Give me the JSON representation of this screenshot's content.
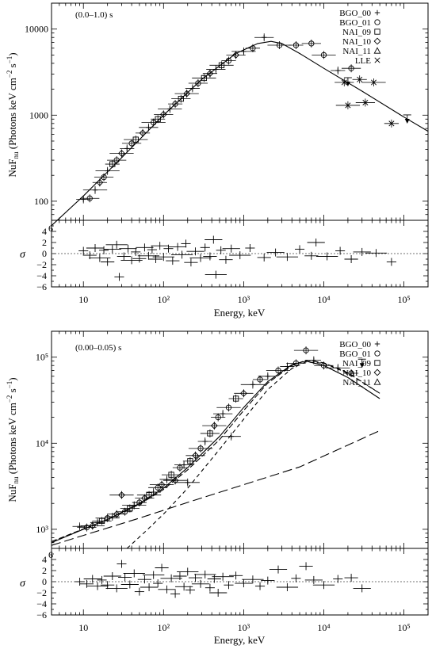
{
  "chart_data": [
    {
      "type": "scatter",
      "panel_label": "(0.0–1.0) s",
      "xlabel": "Energy, keV",
      "ylabel_main": "NuF",
      "ylabel_sub": "nu",
      "ylabel_units": " (Photons keV cm",
      "ylabel_exp1": "−2",
      "ylabel_mid": " s",
      "ylabel_exp2": "−1",
      "ylabel_close": ")",
      "residual_label": "σ",
      "xscale": "log",
      "yscale": "log",
      "xlim": [
        4,
        200000
      ],
      "ylim": [
        60,
        20000
      ],
      "xticks": [
        {
          "v": 10,
          "label": "10"
        },
        {
          "v": 100,
          "label": "10²"
        },
        {
          "v": 1000,
          "label": "10³"
        },
        {
          "v": 10000,
          "label": "10⁴"
        },
        {
          "v": 100000,
          "label": "10⁵"
        }
      ],
      "yticks": [
        {
          "v": 100,
          "label": "100"
        },
        {
          "v": 1000,
          "label": "1000"
        },
        {
          "v": 10000,
          "label": "10000"
        }
      ],
      "y_bottom_label": "6",
      "residual_ylim": [
        -6,
        6
      ],
      "residual_ticks": [
        "4",
        "2",
        "0",
        "−2",
        "−4",
        "−6"
      ],
      "legend": {
        "position": "top-right",
        "entries": [
          {
            "name": "BGO_00",
            "marker": "+"
          },
          {
            "name": "BGO_01",
            "marker": "○"
          },
          {
            "name": "NAI_09",
            "marker": "□"
          },
          {
            "name": "NAI_10",
            "marker": "◇"
          },
          {
            "name": "NAI_11",
            "marker": "△"
          },
          {
            "name": "LLE",
            "marker": "×"
          }
        ]
      },
      "model_curves": [
        {
          "style": "solid",
          "x": [
            4,
            10,
            30,
            100,
            300,
            800,
            1500,
            2200,
            3000,
            5000,
            10000,
            30000,
            100000,
            200000
          ],
          "y": [
            52,
            115,
            320,
            1000,
            2600,
            5200,
            6800,
            7200,
            6800,
            5200,
            3500,
            1900,
            950,
            650
          ]
        }
      ],
      "points": [
        {
          "x": 10,
          "y": 105,
          "d": 0
        },
        {
          "x": 12,
          "y": 108,
          "d": 1
        },
        {
          "x": 14,
          "y": 135,
          "d": 0
        },
        {
          "x": 16,
          "y": 165,
          "d": 3
        },
        {
          "x": 18,
          "y": 190,
          "d": 1
        },
        {
          "x": 20,
          "y": 225,
          "d": 0
        },
        {
          "x": 23,
          "y": 270,
          "d": 2
        },
        {
          "x": 26,
          "y": 300,
          "d": 1
        },
        {
          "x": 30,
          "y": 360,
          "d": 3
        },
        {
          "x": 35,
          "y": 410,
          "d": 0
        },
        {
          "x": 40,
          "y": 470,
          "d": 1
        },
        {
          "x": 45,
          "y": 520,
          "d": 2
        },
        {
          "x": 55,
          "y": 620,
          "d": 3
        },
        {
          "x": 65,
          "y": 720,
          "d": 0
        },
        {
          "x": 75,
          "y": 820,
          "d": 1
        },
        {
          "x": 85,
          "y": 900,
          "d": 2
        },
        {
          "x": 100,
          "y": 1020,
          "d": 3
        },
        {
          "x": 120,
          "y": 1180,
          "d": 0
        },
        {
          "x": 140,
          "y": 1350,
          "d": 1
        },
        {
          "x": 165,
          "y": 1550,
          "d": 2
        },
        {
          "x": 195,
          "y": 1780,
          "d": 3
        },
        {
          "x": 230,
          "y": 2050,
          "d": 0
        },
        {
          "x": 270,
          "y": 2350,
          "d": 1
        },
        {
          "x": 320,
          "y": 2700,
          "d": 2
        },
        {
          "x": 380,
          "y": 3050,
          "d": 3
        },
        {
          "x": 450,
          "y": 3400,
          "d": 0
        },
        {
          "x": 530,
          "y": 3800,
          "d": 2
        },
        {
          "x": 650,
          "y": 4300,
          "d": 1
        },
        {
          "x": 800,
          "y": 5000,
          "d": 3
        },
        {
          "x": 1000,
          "y": 5500,
          "d": 0
        },
        {
          "x": 1300,
          "y": 6000,
          "d": 1
        },
        {
          "x": 1800,
          "y": 8000,
          "d": 0
        },
        {
          "x": 2800,
          "y": 6500,
          "d": 1
        },
        {
          "x": 4500,
          "y": 6500,
          "d": 1
        },
        {
          "x": 7000,
          "y": 6800,
          "d": 1
        },
        {
          "x": 10000,
          "y": 5000,
          "d": 1
        },
        {
          "x": 15000,
          "y": 3300,
          "d": 0
        },
        {
          "x": 22000,
          "y": 3500,
          "d": 1
        },
        {
          "x": 20000,
          "y": 1300,
          "d": 5
        },
        {
          "x": 28000,
          "y": 2600,
          "d": 5
        },
        {
          "x": 33000,
          "y": 1400,
          "d": 5
        },
        {
          "x": 42000,
          "y": 2400,
          "d": 5
        },
        {
          "x": 70000,
          "y": 800,
          "d": 5
        },
        {
          "x": 18000,
          "y": 2400,
          "d": 5
        }
      ],
      "upper_limits": [
        {
          "x": 20000,
          "y": 2300
        },
        {
          "x": 110000,
          "y": 850
        }
      ],
      "residuals": [
        {
          "x": 10,
          "y": 0.5
        },
        {
          "x": 12,
          "y": -0.3
        },
        {
          "x": 14,
          "y": 1.0
        },
        {
          "x": 16,
          "y": -0.8
        },
        {
          "x": 18,
          "y": 0.6
        },
        {
          "x": 20,
          "y": -1.5
        },
        {
          "x": 23,
          "y": 0.8
        },
        {
          "x": 26,
          "y": 1.6
        },
        {
          "x": 28,
          "y": -4.2
        },
        {
          "x": 32,
          "y": -0.5
        },
        {
          "x": 36,
          "y": 0.9
        },
        {
          "x": 40,
          "y": -1.2
        },
        {
          "x": 45,
          "y": 0.3
        },
        {
          "x": 50,
          "y": -0.9
        },
        {
          "x": 58,
          "y": 1.1
        },
        {
          "x": 65,
          "y": -0.4
        },
        {
          "x": 72,
          "y": 0.7
        },
        {
          "x": 80,
          "y": -1.0
        },
        {
          "x": 90,
          "y": 1.4
        },
        {
          "x": 100,
          "y": -0.6
        },
        {
          "x": 115,
          "y": 0.9
        },
        {
          "x": 130,
          "y": -1.3
        },
        {
          "x": 150,
          "y": 1.2
        },
        {
          "x": 170,
          "y": -0.2
        },
        {
          "x": 190,
          "y": 1.8
        },
        {
          "x": 220,
          "y": -1.6
        },
        {
          "x": 250,
          "y": 0.4
        },
        {
          "x": 290,
          "y": -0.8
        },
        {
          "x": 330,
          "y": 1.1
        },
        {
          "x": 380,
          "y": -0.5
        },
        {
          "x": 420,
          "y": 2.5
        },
        {
          "x": 450,
          "y": -3.8
        },
        {
          "x": 520,
          "y": 0.6
        },
        {
          "x": 600,
          "y": -1.1
        },
        {
          "x": 700,
          "y": 0.9
        },
        {
          "x": 900,
          "y": -0.3
        },
        {
          "x": 1200,
          "y": 1.0
        },
        {
          "x": 1800,
          "y": -0.7
        },
        {
          "x": 2500,
          "y": 0.2
        },
        {
          "x": 3500,
          "y": -0.6
        },
        {
          "x": 5000,
          "y": 0.8
        },
        {
          "x": 7000,
          "y": -0.4
        },
        {
          "x": 8000,
          "y": 2.0
        },
        {
          "x": 11000,
          "y": -0.5
        },
        {
          "x": 16000,
          "y": 0.5
        },
        {
          "x": 22000,
          "y": -1.0
        },
        {
          "x": 30000,
          "y": 0.3
        },
        {
          "x": 45000,
          "y": 0.1
        },
        {
          "x": 70000,
          "y": -1.5
        }
      ]
    },
    {
      "type": "scatter",
      "panel_label": "(0.00–0.05) s",
      "xlabel": "Energy, keV",
      "ylabel_main": "NuF",
      "ylabel_sub": "nu",
      "ylabel_units": " (Photons keV cm",
      "ylabel_exp1": "−2",
      "ylabel_mid": " s",
      "ylabel_exp2": "−1",
      "ylabel_close": ")",
      "residual_label": "σ",
      "xscale": "log",
      "yscale": "log",
      "xlim": [
        4,
        200000
      ],
      "ylim": [
        600,
        200000
      ],
      "xticks": [
        {
          "v": 10,
          "label": "10"
        },
        {
          "v": 100,
          "label": "10²"
        },
        {
          "v": 1000,
          "label": "10³"
        },
        {
          "v": 10000,
          "label": "10⁴"
        },
        {
          "v": 100000,
          "label": "10⁵"
        }
      ],
      "yticks": [
        {
          "v": 1000,
          "label": "10³"
        },
        {
          "v": 10000,
          "label": "10⁴"
        },
        {
          "v": 100000,
          "label": "10⁵"
        }
      ],
      "y_bottom_label": "6",
      "residual_ylim": [
        -6,
        6
      ],
      "residual_ticks": [
        "4",
        "2",
        "0",
        "−2",
        "−4",
        "−6"
      ],
      "legend": {
        "position": "top-right",
        "entries": [
          {
            "name": "BGO_00",
            "marker": "+"
          },
          {
            "name": "BGO_01",
            "marker": "○"
          },
          {
            "name": "NAI_09",
            "marker": "□"
          },
          {
            "name": "NAI_10",
            "marker": "◇"
          },
          {
            "name": "NAI_11",
            "marker": "△"
          }
        ]
      },
      "model_curves": [
        {
          "style": "solid",
          "x": [
            4,
            10,
            20,
            50,
            100,
            200,
            500,
            1000,
            2000,
            4000,
            6000,
            10000,
            20000,
            50000
          ],
          "y": [
            700,
            1000,
            1300,
            2000,
            3000,
            5200,
            12000,
            26000,
            52000,
            82000,
            90000,
            80000,
            58000,
            33000
          ]
        },
        {
          "style": "dashed",
          "x": [
            4,
            10,
            20,
            50,
            100,
            200,
            500,
            1000,
            2000,
            4000,
            6000,
            10000,
            20000,
            50000
          ],
          "y": [
            720,
            1010,
            1300,
            1950,
            2900,
            4900,
            11000,
            24000,
            50000,
            80000,
            92000,
            86000,
            66000,
            38000
          ]
        },
        {
          "style": "longdash",
          "x": [
            4,
            10,
            50,
            200,
            1000,
            5000,
            50000
          ],
          "y": [
            650,
            850,
            1350,
            2050,
            3300,
            5300,
            14000
          ]
        },
        {
          "style": "shortdash",
          "x": [
            35,
            60,
            100,
            200,
            500,
            1000,
            2000,
            4000,
            6000,
            10000,
            20000,
            50000
          ],
          "y": [
            600,
            950,
            1500,
            3000,
            8500,
            19000,
            42000,
            74000,
            88000,
            85000,
            65000,
            38000
          ]
        }
      ],
      "points": [
        {
          "x": 9,
          "y": 1080,
          "d": 0
        },
        {
          "x": 11,
          "y": 1050,
          "d": 1
        },
        {
          "x": 13,
          "y": 1100,
          "d": 3
        },
        {
          "x": 15,
          "y": 1200,
          "d": 0
        },
        {
          "x": 17,
          "y": 1250,
          "d": 2
        },
        {
          "x": 20,
          "y": 1350,
          "d": 1
        },
        {
          "x": 23,
          "y": 1400,
          "d": 0
        },
        {
          "x": 26,
          "y": 1500,
          "d": 3
        },
        {
          "x": 30,
          "y": 2500,
          "d": 3
        },
        {
          "x": 33,
          "y": 1600,
          "d": 1
        },
        {
          "x": 38,
          "y": 1750,
          "d": 2
        },
        {
          "x": 43,
          "y": 1900,
          "d": 0
        },
        {
          "x": 50,
          "y": 2050,
          "d": 1
        },
        {
          "x": 58,
          "y": 2300,
          "d": 3
        },
        {
          "x": 66,
          "y": 2500,
          "d": 2
        },
        {
          "x": 75,
          "y": 2700,
          "d": 0
        },
        {
          "x": 85,
          "y": 3050,
          "d": 1
        },
        {
          "x": 95,
          "y": 3300,
          "d": 3
        },
        {
          "x": 110,
          "y": 3800,
          "d": 0
        },
        {
          "x": 125,
          "y": 4300,
          "d": 2
        },
        {
          "x": 140,
          "y": 3700,
          "d": 3
        },
        {
          "x": 160,
          "y": 5200,
          "d": 1
        },
        {
          "x": 180,
          "y": 5600,
          "d": 0
        },
        {
          "x": 200,
          "y": 3500,
          "d": 0
        },
        {
          "x": 215,
          "y": 6200,
          "d": 2
        },
        {
          "x": 250,
          "y": 7200,
          "d": 3
        },
        {
          "x": 290,
          "y": 8700,
          "d": 1
        },
        {
          "x": 330,
          "y": 10500,
          "d": 0
        },
        {
          "x": 380,
          "y": 13000,
          "d": 2
        },
        {
          "x": 430,
          "y": 16000,
          "d": 3
        },
        {
          "x": 480,
          "y": 20000,
          "d": 1
        },
        {
          "x": 550,
          "y": 22000,
          "d": 0
        },
        {
          "x": 650,
          "y": 26000,
          "d": 1
        },
        {
          "x": 800,
          "y": 33000,
          "d": 2
        },
        {
          "x": 1000,
          "y": 38000,
          "d": 3
        },
        {
          "x": 1300,
          "y": 48000,
          "d": 0
        },
        {
          "x": 1600,
          "y": 55000,
          "d": 1
        },
        {
          "x": 2000,
          "y": 60000,
          "d": 0
        },
        {
          "x": 2700,
          "y": 70000,
          "d": 1
        },
        {
          "x": 3500,
          "y": 78000,
          "d": 0
        },
        {
          "x": 4500,
          "y": 85000,
          "d": 1
        },
        {
          "x": 6000,
          "y": 120000,
          "d": 1
        },
        {
          "x": 7500,
          "y": 92000,
          "d": 0
        },
        {
          "x": 10000,
          "y": 80000,
          "d": 1
        },
        {
          "x": 15000,
          "y": 75000,
          "d": 0
        },
        {
          "x": 22000,
          "y": 65000,
          "d": 1
        },
        {
          "x": 700,
          "y": 12000,
          "d": 0
        }
      ],
      "upper_limits": [
        {
          "x": 30000,
          "y": 80000
        }
      ],
      "residuals": [
        {
          "x": 9,
          "y": 0.0
        },
        {
          "x": 11,
          "y": -0.4
        },
        {
          "x": 13,
          "y": 0.5
        },
        {
          "x": 15,
          "y": -0.8
        },
        {
          "x": 17,
          "y": 0.3
        },
        {
          "x": 20,
          "y": -0.6
        },
        {
          "x": 23,
          "y": 1.0
        },
        {
          "x": 26,
          "y": -1.2
        },
        {
          "x": 30,
          "y": 3.2
        },
        {
          "x": 33,
          "y": 0.8
        },
        {
          "x": 38,
          "y": -0.5
        },
        {
          "x": 43,
          "y": 1.5
        },
        {
          "x": 50,
          "y": -1.8
        },
        {
          "x": 58,
          "y": 0.4
        },
        {
          "x": 66,
          "y": -1.0
        },
        {
          "x": 75,
          "y": 1.2
        },
        {
          "x": 85,
          "y": -0.3
        },
        {
          "x": 95,
          "y": 2.5
        },
        {
          "x": 110,
          "y": -1.4
        },
        {
          "x": 125,
          "y": 0.6
        },
        {
          "x": 140,
          "y": -2.2
        },
        {
          "x": 160,
          "y": 1.0
        },
        {
          "x": 180,
          "y": -0.9
        },
        {
          "x": 200,
          "y": 1.8
        },
        {
          "x": 215,
          "y": -1.5
        },
        {
          "x": 250,
          "y": 0.7
        },
        {
          "x": 290,
          "y": -0.4
        },
        {
          "x": 330,
          "y": 1.3
        },
        {
          "x": 380,
          "y": -1.1
        },
        {
          "x": 430,
          "y": 0.5
        },
        {
          "x": 480,
          "y": -2.0
        },
        {
          "x": 550,
          "y": 0.9
        },
        {
          "x": 650,
          "y": -0.6
        },
        {
          "x": 800,
          "y": 1.1
        },
        {
          "x": 1000,
          "y": -0.3
        },
        {
          "x": 1300,
          "y": 0.4
        },
        {
          "x": 1600,
          "y": -0.8
        },
        {
          "x": 2000,
          "y": 0.2
        },
        {
          "x": 2700,
          "y": 2.2
        },
        {
          "x": 3500,
          "y": -1.0
        },
        {
          "x": 4500,
          "y": 0.6
        },
        {
          "x": 6000,
          "y": 2.8
        },
        {
          "x": 7500,
          "y": 0.3
        },
        {
          "x": 10000,
          "y": -0.6
        },
        {
          "x": 15000,
          "y": 0.5
        },
        {
          "x": 22000,
          "y": 0.7
        },
        {
          "x": 30000,
          "y": -1.2
        }
      ]
    }
  ]
}
